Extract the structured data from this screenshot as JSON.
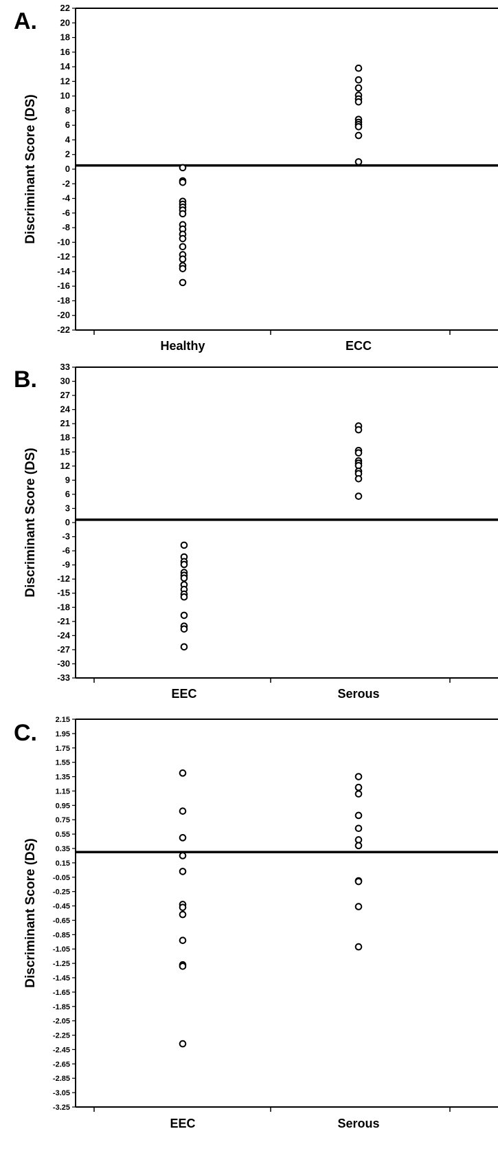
{
  "chart_data": [
    {
      "type": "scatter",
      "panel_label": "A.",
      "ylabel": "Discriminant Score (DS)",
      "ylim": [
        -22,
        22
      ],
      "yticks": [
        "22",
        "20",
        "18",
        "16",
        "14",
        "12",
        "10",
        "8",
        "6",
        "4",
        "2",
        "0",
        "-2",
        "-4",
        "-6",
        "-8",
        "-10",
        "-12",
        "-14",
        "-16",
        "-18",
        "-20",
        "-22"
      ],
      "categories": [
        "Healthy",
        "ECC"
      ],
      "threshold": 0.5,
      "series": [
        {
          "category": "Healthy",
          "values": [
            0.2,
            -1.6,
            -1.8,
            -4.4,
            -4.8,
            -5.2,
            -5.6,
            -6.1,
            -7.6,
            -8.2,
            -8.9,
            -9.5,
            -10.6,
            -11.7,
            -12.3,
            -13.2,
            -13.6,
            -15.5
          ]
        },
        {
          "category": "ECC",
          "values": [
            13.8,
            12.2,
            11.1,
            10.1,
            9.6,
            9.2,
            6.8,
            6.4,
            6.1,
            5.8,
            4.6,
            1.0
          ]
        }
      ]
    },
    {
      "type": "scatter",
      "panel_label": "B.",
      "ylabel": "Discriminant Score (DS)",
      "ylim": [
        -33,
        33
      ],
      "yticks": [
        "33",
        "30",
        "27",
        "24",
        "21",
        "18",
        "15",
        "12",
        "9",
        "6",
        "3",
        "0",
        "-3",
        "-6",
        "-9",
        "-12",
        "-15",
        "-18",
        "-21",
        "-24",
        "-27",
        "-30",
        "-33"
      ],
      "categories": [
        "EEC",
        "Serous"
      ],
      "threshold": 0.6,
      "series": [
        {
          "category": "EEC",
          "values": [
            -4.8,
            -7.3,
            -8.3,
            -8.9,
            -10.6,
            -11.2,
            -11.8,
            -13.2,
            -14.2,
            -15.2,
            -15.8,
            -19.7,
            -22.0,
            -22.6,
            -26.4
          ]
        },
        {
          "category": "Serous",
          "values": [
            20.5,
            19.7,
            15.3,
            14.8,
            13.1,
            12.6,
            12.1,
            10.9,
            10.4,
            9.3,
            5.6
          ]
        }
      ]
    },
    {
      "type": "scatter",
      "panel_label": "C.",
      "ylabel": "Discriminant Score (DS)",
      "ylim": [
        -3.25,
        2.15
      ],
      "yticks": [
        "2.15",
        "1.95",
        "1.75",
        "1.55",
        "1.35",
        "1.15",
        "0.95",
        "0.75",
        "0.55",
        "0.35",
        "0.15",
        "-0.05",
        "-0.25",
        "-0.45",
        "-0.65",
        "-0.85",
        "-1.05",
        "-1.25",
        "-1.45",
        "-1.65",
        "-1.85",
        "-2.05",
        "-2.25",
        "-2.45",
        "-2.65",
        "-2.85",
        "-3.05",
        "-3.25"
      ],
      "categories": [
        "EEC",
        "Serous"
      ],
      "threshold": 0.3,
      "series": [
        {
          "category": "EEC",
          "values": [
            1.4,
            0.87,
            0.5,
            0.25,
            0.03,
            -0.43,
            -0.47,
            -0.57,
            -0.93,
            -1.27,
            -1.29,
            -2.37
          ]
        },
        {
          "category": "Serous",
          "values": [
            1.35,
            1.2,
            1.11,
            0.81,
            0.63,
            0.47,
            0.39,
            -0.1,
            -0.11,
            -0.46,
            -1.02
          ]
        }
      ]
    }
  ]
}
